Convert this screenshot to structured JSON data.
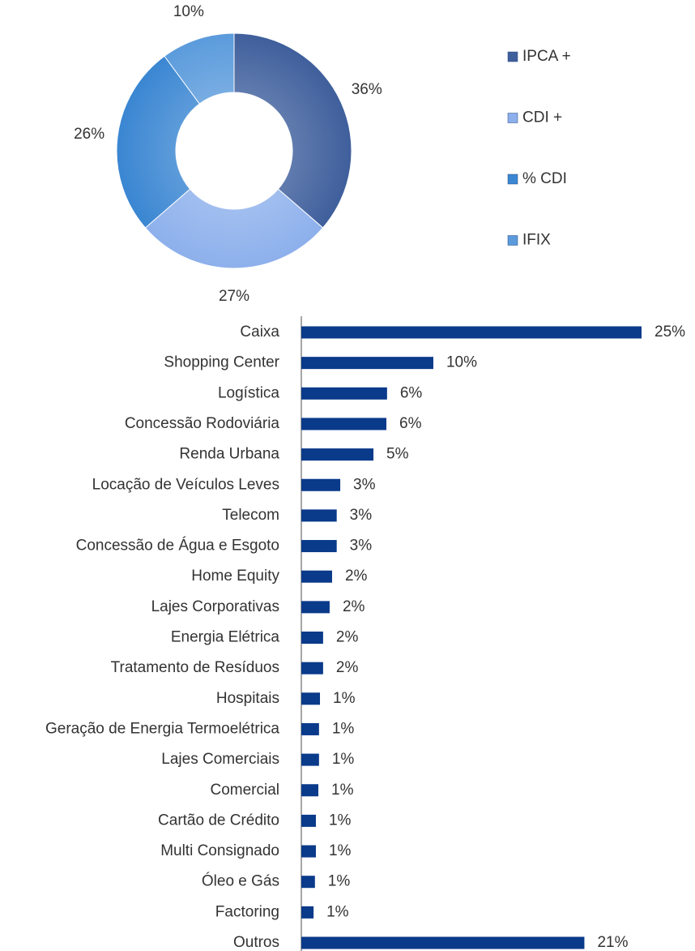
{
  "chart_data": [
    {
      "type": "donut",
      "categories": [
        "IPCA +",
        "CDI +",
        "% CDI",
        "IFIX"
      ],
      "values": [
        36,
        27,
        26,
        10
      ],
      "value_labels": [
        "36%",
        "27%",
        "26%",
        "10%"
      ],
      "colors": [
        "#3f5f9c",
        "#8db0ec",
        "#3a86d2",
        "#5b9bdc"
      ],
      "legend": "right"
    },
    {
      "type": "hbar",
      "categories": [
        "Caixa",
        "Shopping Center",
        "Logística",
        "Concessão Rodoviária",
        "Renda Urbana",
        "Locação de Veículos Leves",
        "Telecom",
        "Concessão de Água e Esgoto",
        "Home Equity",
        "Lajes Corporativas",
        "Energia Elétrica",
        "Tratamento de Resíduos",
        "Hospitais",
        "Geração de Energia Termoelétrica",
        "Lajes Comerciais",
        "Comercial",
        "Cartão de Crédito",
        "Multi Consignado",
        "Óleo e Gás",
        "Factoring",
        "Outros"
      ],
      "values": [
        25,
        9.7,
        6.3,
        6.25,
        5.3,
        2.86,
        2.6,
        2.6,
        2.26,
        2.08,
        1.6,
        1.6,
        1.37,
        1.3,
        1.3,
        1.25,
        1.07,
        1.07,
        1.0,
        0.9,
        20.8
      ],
      "value_labels": [
        "25%",
        "10%",
        "6%",
        "6%",
        "5%",
        "3%",
        "3%",
        "3%",
        "2%",
        "2%",
        "2%",
        "2%",
        "1%",
        "1%",
        "1%",
        "1%",
        "1%",
        "1%",
        "1%",
        "1%",
        "21%"
      ],
      "color": "#0a3a8a"
    }
  ]
}
